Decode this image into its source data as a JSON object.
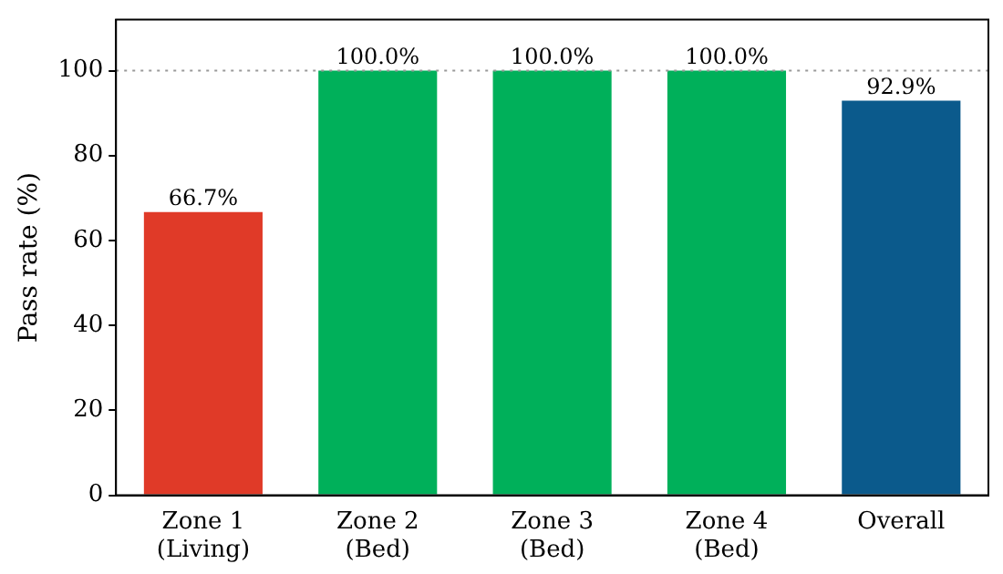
{
  "chart_data": {
    "type": "bar",
    "ylabel": "Pass rate (%)",
    "categories": [
      "Zone 1\n(Living)",
      "Zone 2\n(Bed)",
      "Zone 3\n(Bed)",
      "Zone 4\n(Bed)",
      "Overall"
    ],
    "values": [
      66.7,
      100.0,
      100.0,
      100.0,
      92.9
    ],
    "colors": [
      "#e03a28",
      "#00b05a",
      "#00b05a",
      "#00b05a",
      "#0b5a8c"
    ],
    "value_labels": [
      "66.7%",
      "100.0%",
      "100.0%",
      "100.0%",
      "92.9%"
    ],
    "ylim": [
      0,
      112
    ],
    "yticks": [
      0,
      20,
      40,
      60,
      80,
      100
    ],
    "grid": false,
    "legend": false,
    "ref_lines": [
      {
        "axis": "y",
        "value": 100,
        "color": "#999999",
        "line_style": "dotted"
      }
    ]
  }
}
